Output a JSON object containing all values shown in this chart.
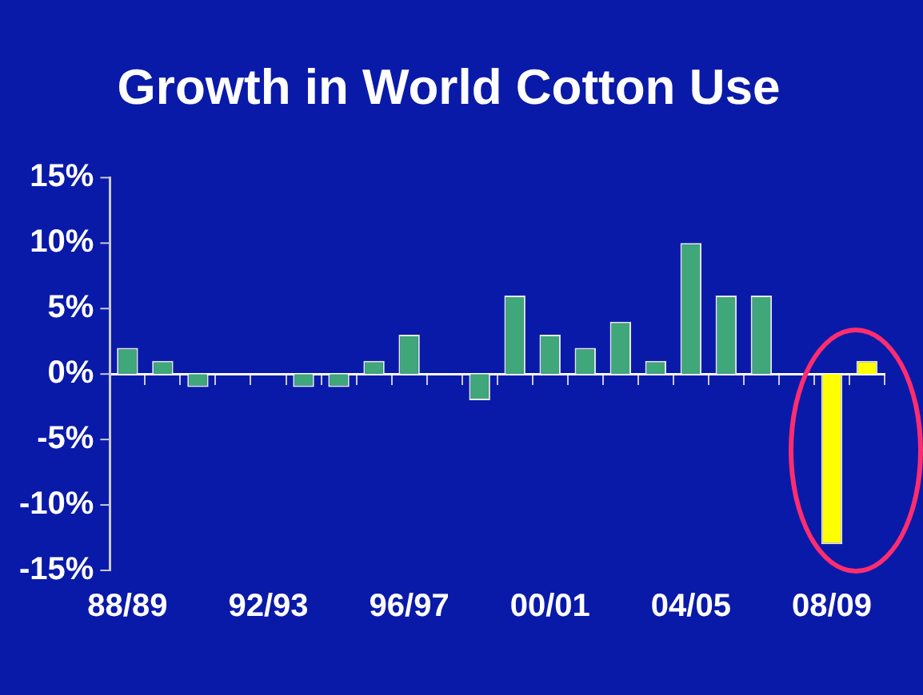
{
  "chart_data": {
    "type": "bar",
    "title": "Growth in World Cotton Use",
    "categories": [
      "88/89",
      null,
      null,
      null,
      "92/93",
      null,
      null,
      null,
      "96/97",
      null,
      null,
      null,
      "00/01",
      null,
      null,
      null,
      "04/05",
      null,
      null,
      null,
      "08/09",
      null
    ],
    "values": [
      2,
      1,
      -1,
      0,
      0,
      -1,
      -1,
      1,
      3,
      0,
      -2,
      6,
      3,
      2,
      4,
      1,
      10,
      6,
      6,
      0,
      -13,
      1
    ],
    "colors": [
      "#3fa77a",
      "#3fa77a",
      "#3fa77a",
      "#3fa77a",
      "#3fa77a",
      "#3fa77a",
      "#3fa77a",
      "#3fa77a",
      "#3fa77a",
      "#3fa77a",
      "#3fa77a",
      "#3fa77a",
      "#3fa77a",
      "#3fa77a",
      "#3fa77a",
      "#3fa77a",
      "#3fa77a",
      "#3fa77a",
      "#3fa77a",
      "#3fa77a",
      "#ffff00",
      "#ffff00"
    ],
    "ylim": [
      -15,
      15
    ],
    "yticks": [
      {
        "value": -15,
        "label": "-15%"
      },
      {
        "value": -10,
        "label": "-10%"
      },
      {
        "value": -5,
        "label": "-5%"
      },
      {
        "value": 0,
        "label": "0%"
      },
      {
        "value": 5,
        "label": "5%"
      },
      {
        "value": 10,
        "label": "10%"
      },
      {
        "value": 15,
        "label": "15%"
      }
    ],
    "legend": false
  }
}
